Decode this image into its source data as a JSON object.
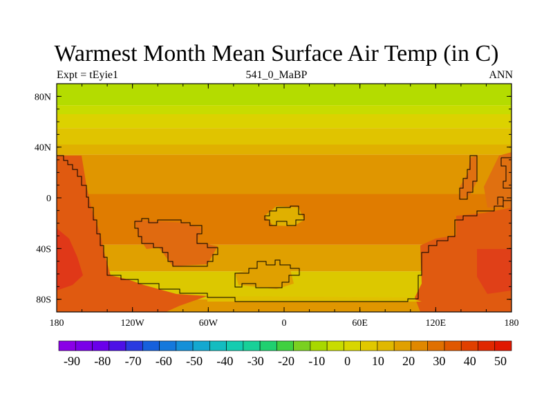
{
  "chart_data": {
    "type": "heatmap",
    "title": "Warmest Month Mean Surface Air Temp (in C)",
    "subtitle_left": "Expt = tEyie1",
    "subtitle_center": "541_0_MaBP",
    "subtitle_right": "ANN",
    "x_ticks": [
      "180",
      "120W",
      "60W",
      "0",
      "60E",
      "120E",
      "180"
    ],
    "y_ticks": [
      "80N",
      "40N",
      "0",
      "40S",
      "80S"
    ],
    "xlim": [
      -180,
      180
    ],
    "ylim": [
      -90,
      90
    ],
    "colorbar": {
      "labels": [
        "-90",
        "-80",
        "-70",
        "-60",
        "-50",
        "-40",
        "-30",
        "-20",
        "-10",
        "0",
        "10",
        "20",
        "30",
        "40",
        "50"
      ],
      "colors": [
        "#8a00e6",
        "#7a00e8",
        "#6a00ea",
        "#4d10e6",
        "#2a3ae0",
        "#1660dc",
        "#1478dc",
        "#1490d8",
        "#14a8d0",
        "#14bcc0",
        "#14ccb0",
        "#18d098",
        "#20d070",
        "#40d040",
        "#7ad020",
        "#a8d800",
        "#c8dc00",
        "#d8d600",
        "#e0c800",
        "#e0b800",
        "#e0a000",
        "#e08800",
        "#e07000",
        "#e05800",
        "#e04000",
        "#e02800",
        "#e01800"
      ]
    },
    "bands": [
      {
        "lat_top": 90,
        "lat_bottom": 73,
        "color": "#b4dc00"
      },
      {
        "lat_top": 73,
        "lat_bottom": 66,
        "color": "#c8dc00"
      },
      {
        "lat_top": 66,
        "lat_bottom": 55,
        "color": "#dcd200"
      },
      {
        "lat_top": 55,
        "lat_bottom": 42,
        "color": "#e0c400"
      },
      {
        "lat_top": 42,
        "lat_bottom": 34,
        "color": "#e0b000"
      },
      {
        "lat_top": 34,
        "lat_bottom": 3,
        "color": "#e09600"
      },
      {
        "lat_top": 3,
        "lat_bottom": -37,
        "color": "#e07c00"
      },
      {
        "lat_top": -37,
        "lat_bottom": -58,
        "color": "#e0a000"
      },
      {
        "lat_top": -58,
        "lat_bottom": -80,
        "color": "#dcc800"
      },
      {
        "lat_top": -80,
        "lat_bottom": -90,
        "color": "#e09600"
      }
    ]
  }
}
